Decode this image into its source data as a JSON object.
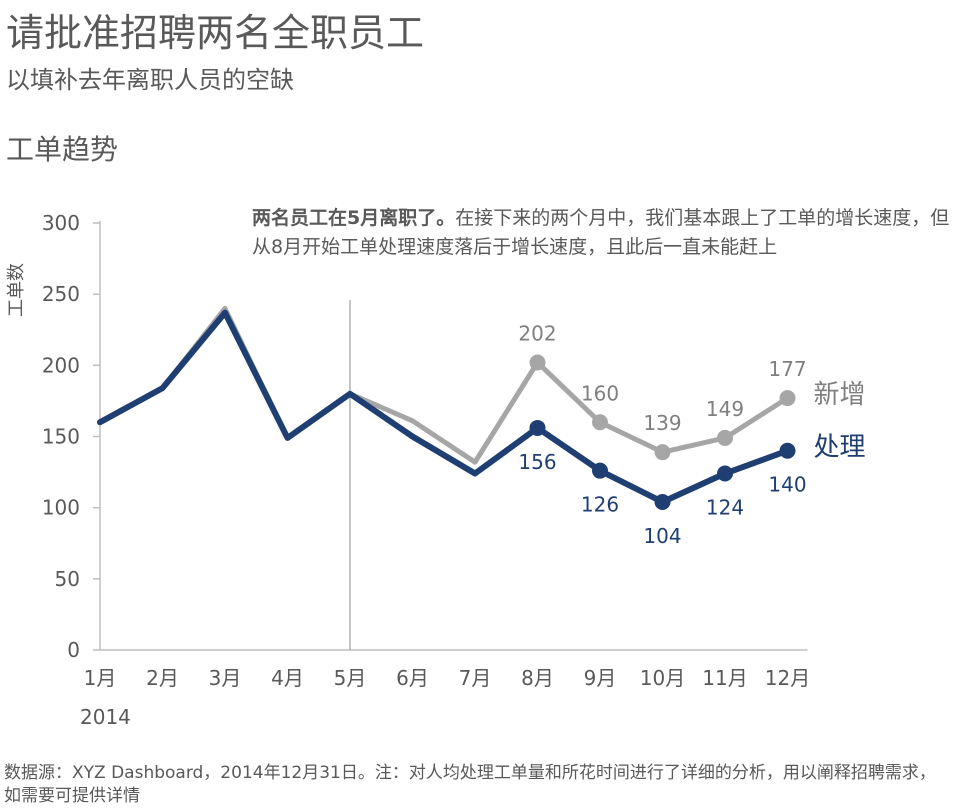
{
  "header": {
    "title": "请批准招聘两名全职员工",
    "subtitle": "以填补去年离职人员的空缺",
    "chart_title": "工单趋势"
  },
  "annotation": {
    "bold": "两名员工在5月离职了。",
    "text": "在接下来的两个月中，我们基本跟上了工单的增长速度，但从8月开始工单处理速度落后于增长速度，且此后一直未能赶上"
  },
  "footer": {
    "source": "数据源：XYZ Dashboard，2014年12月31日。注：对人均处理工单量和所花时间进行了详细的分析，用以阐释招聘需求，如需要可提供详情"
  },
  "colors": {
    "received": "#a6a6a6",
    "processed": "#1f3f73",
    "axis": "#bfbfbf"
  },
  "chart_data": {
    "type": "line",
    "title": "工单趋势",
    "ylabel": "工单数",
    "xlabel": "",
    "x": [
      "1月",
      "2月",
      "3月",
      "4月",
      "5月",
      "6月",
      "7月",
      "8月",
      "9月",
      "10月",
      "11月",
      "12月"
    ],
    "year_label": "2014",
    "ylim": [
      0,
      300
    ],
    "yticks": [
      0,
      50,
      100,
      150,
      200,
      250,
      300
    ],
    "grid": false,
    "marker_month": "5月",
    "series": [
      {
        "name": "新增",
        "values": [
          160,
          184,
          240,
          149,
          180,
          161,
          132,
          202,
          160,
          139,
          149,
          177
        ],
        "labeled_from": 7
      },
      {
        "name": "处理",
        "values": [
          160,
          184,
          237,
          149,
          180,
          150,
          124,
          156,
          126,
          104,
          124,
          140
        ],
        "labeled_from": 7
      }
    ]
  }
}
